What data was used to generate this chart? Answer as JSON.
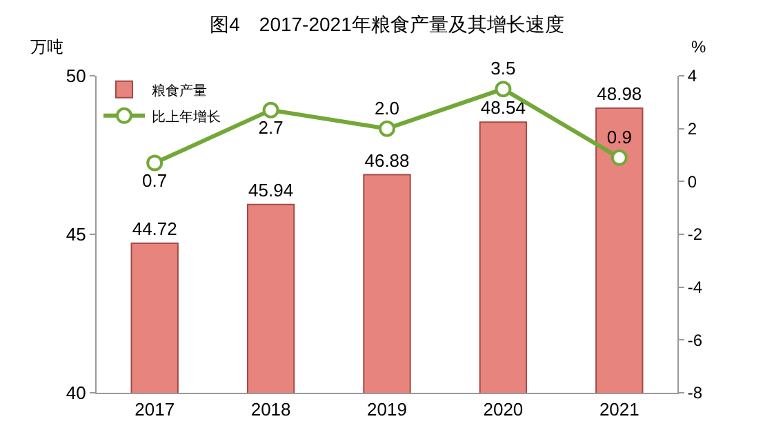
{
  "chart_data": {
    "type": "bar",
    "title": "图4　2017-2021年粮食产量及其增长速度",
    "ylabel": "万吨",
    "y2label": "%",
    "categories": [
      "2017",
      "2018",
      "2019",
      "2020",
      "2021"
    ],
    "series": [
      {
        "name": "粮食产量",
        "color": "#e8847e",
        "values": [
          44.72,
          45.94,
          46.88,
          48.54,
          48.98
        ]
      },
      {
        "name": "比上年增长",
        "type": "line",
        "axis": "y2",
        "color": "#73a838",
        "marker": "circle",
        "values": [
          0.7,
          2.7,
          2.0,
          3.5,
          0.9
        ],
        "value_labels": [
          "0.7",
          "2.7",
          "2.0",
          "3.5",
          "0.9"
        ]
      }
    ],
    "ylim": [
      40,
      50
    ],
    "yticks": [
      40,
      45,
      50
    ],
    "y2lim": [
      -8,
      4
    ],
    "y2ticks": [
      -8,
      -6,
      -4,
      -2,
      0,
      2,
      4
    ],
    "data_labels": true,
    "grid": false,
    "legend": "top left"
  }
}
